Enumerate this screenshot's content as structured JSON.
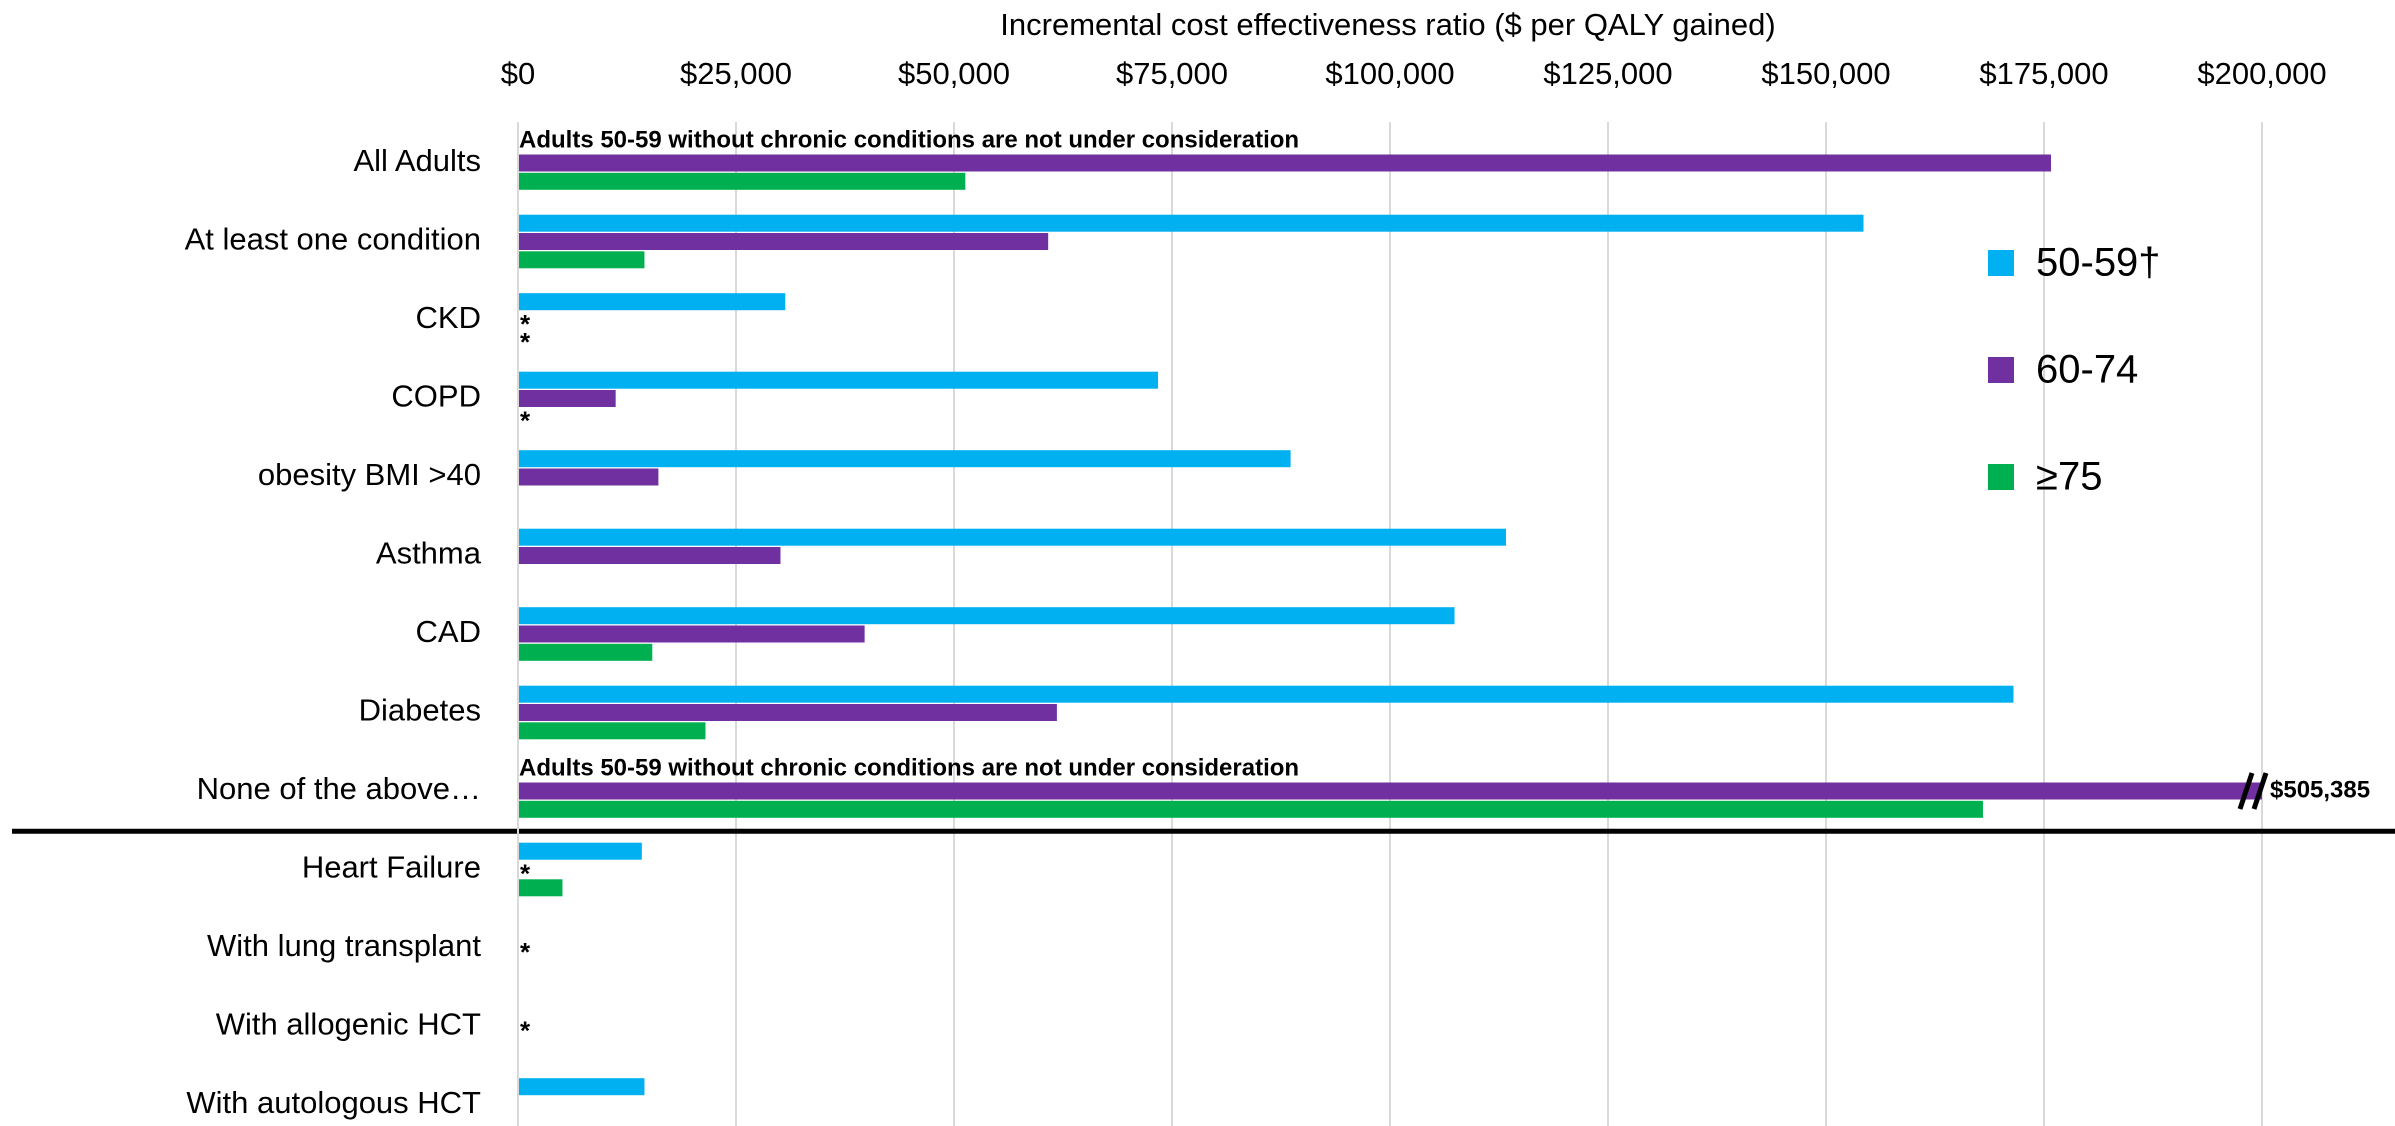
{
  "chart_data": {
    "type": "barh",
    "title": "Incremental cost effectiveness ratio ($ per QALY gained)",
    "categories": [
      "All Adults",
      "At least one condition",
      "CKD",
      "COPD",
      "obesity BMI >40",
      "Asthma",
      "CAD",
      "Diabetes",
      "None of the above…",
      "Heart Failure",
      "With lung transplant",
      "With allogenic HCT",
      "With autologous HCT"
    ],
    "series": [
      {
        "name": "50-59†",
        "color": "#00b0f0",
        "values": [
          null,
          154300,
          30650,
          73400,
          88600,
          113300,
          107400,
          171500,
          null,
          14200,
          null,
          null,
          14500
        ]
      },
      {
        "name": "60-74",
        "color": "#7030a0",
        "values": [
          175800,
          60800,
          null,
          11200,
          16100,
          30100,
          39750,
          61800,
          505385,
          null,
          null,
          null,
          null
        ],
        "value_labels": [
          null,
          null,
          "*",
          null,
          null,
          null,
          null,
          null,
          "$505,385",
          "*",
          null,
          null,
          null
        ]
      },
      {
        "name": "≥75",
        "color": "#00b050",
        "values": [
          51300,
          14500,
          null,
          null,
          null,
          null,
          15400,
          21500,
          168000,
          5100,
          null,
          null,
          null
        ],
        "value_labels": [
          null,
          null,
          "*",
          "*",
          null,
          null,
          null,
          null,
          null,
          null,
          null,
          null,
          null
        ]
      }
    ],
    "common_marks": [
      {
        "category": "With lung transplant",
        "label": "*"
      },
      {
        "category": "With allogenic HCT",
        "label": "*"
      }
    ],
    "annotations": [
      {
        "category": "All Adults",
        "text": "Adults 50-59 without chronic conditions are not under consideration"
      },
      {
        "category": "None of the above…",
        "text": "Adults 50-59 without chronic conditions are not under consideration"
      }
    ],
    "divider_after": "None of the above…",
    "xlim": [
      0,
      200000
    ],
    "xticks": [
      {
        "value": 0,
        "label": "$0"
      },
      {
        "value": 25000,
        "label": "$25,000"
      },
      {
        "value": 50000,
        "label": "$50,000"
      },
      {
        "value": 75000,
        "label": "$75,000"
      },
      {
        "value": 100000,
        "label": "$100,000"
      },
      {
        "value": 125000,
        "label": "$125,000"
      },
      {
        "value": 150000,
        "label": "$150,000"
      },
      {
        "value": 175000,
        "label": "$175,000"
      },
      {
        "value": 200000,
        "label": "$200,000"
      }
    ],
    "grid": true,
    "legend": "right"
  }
}
